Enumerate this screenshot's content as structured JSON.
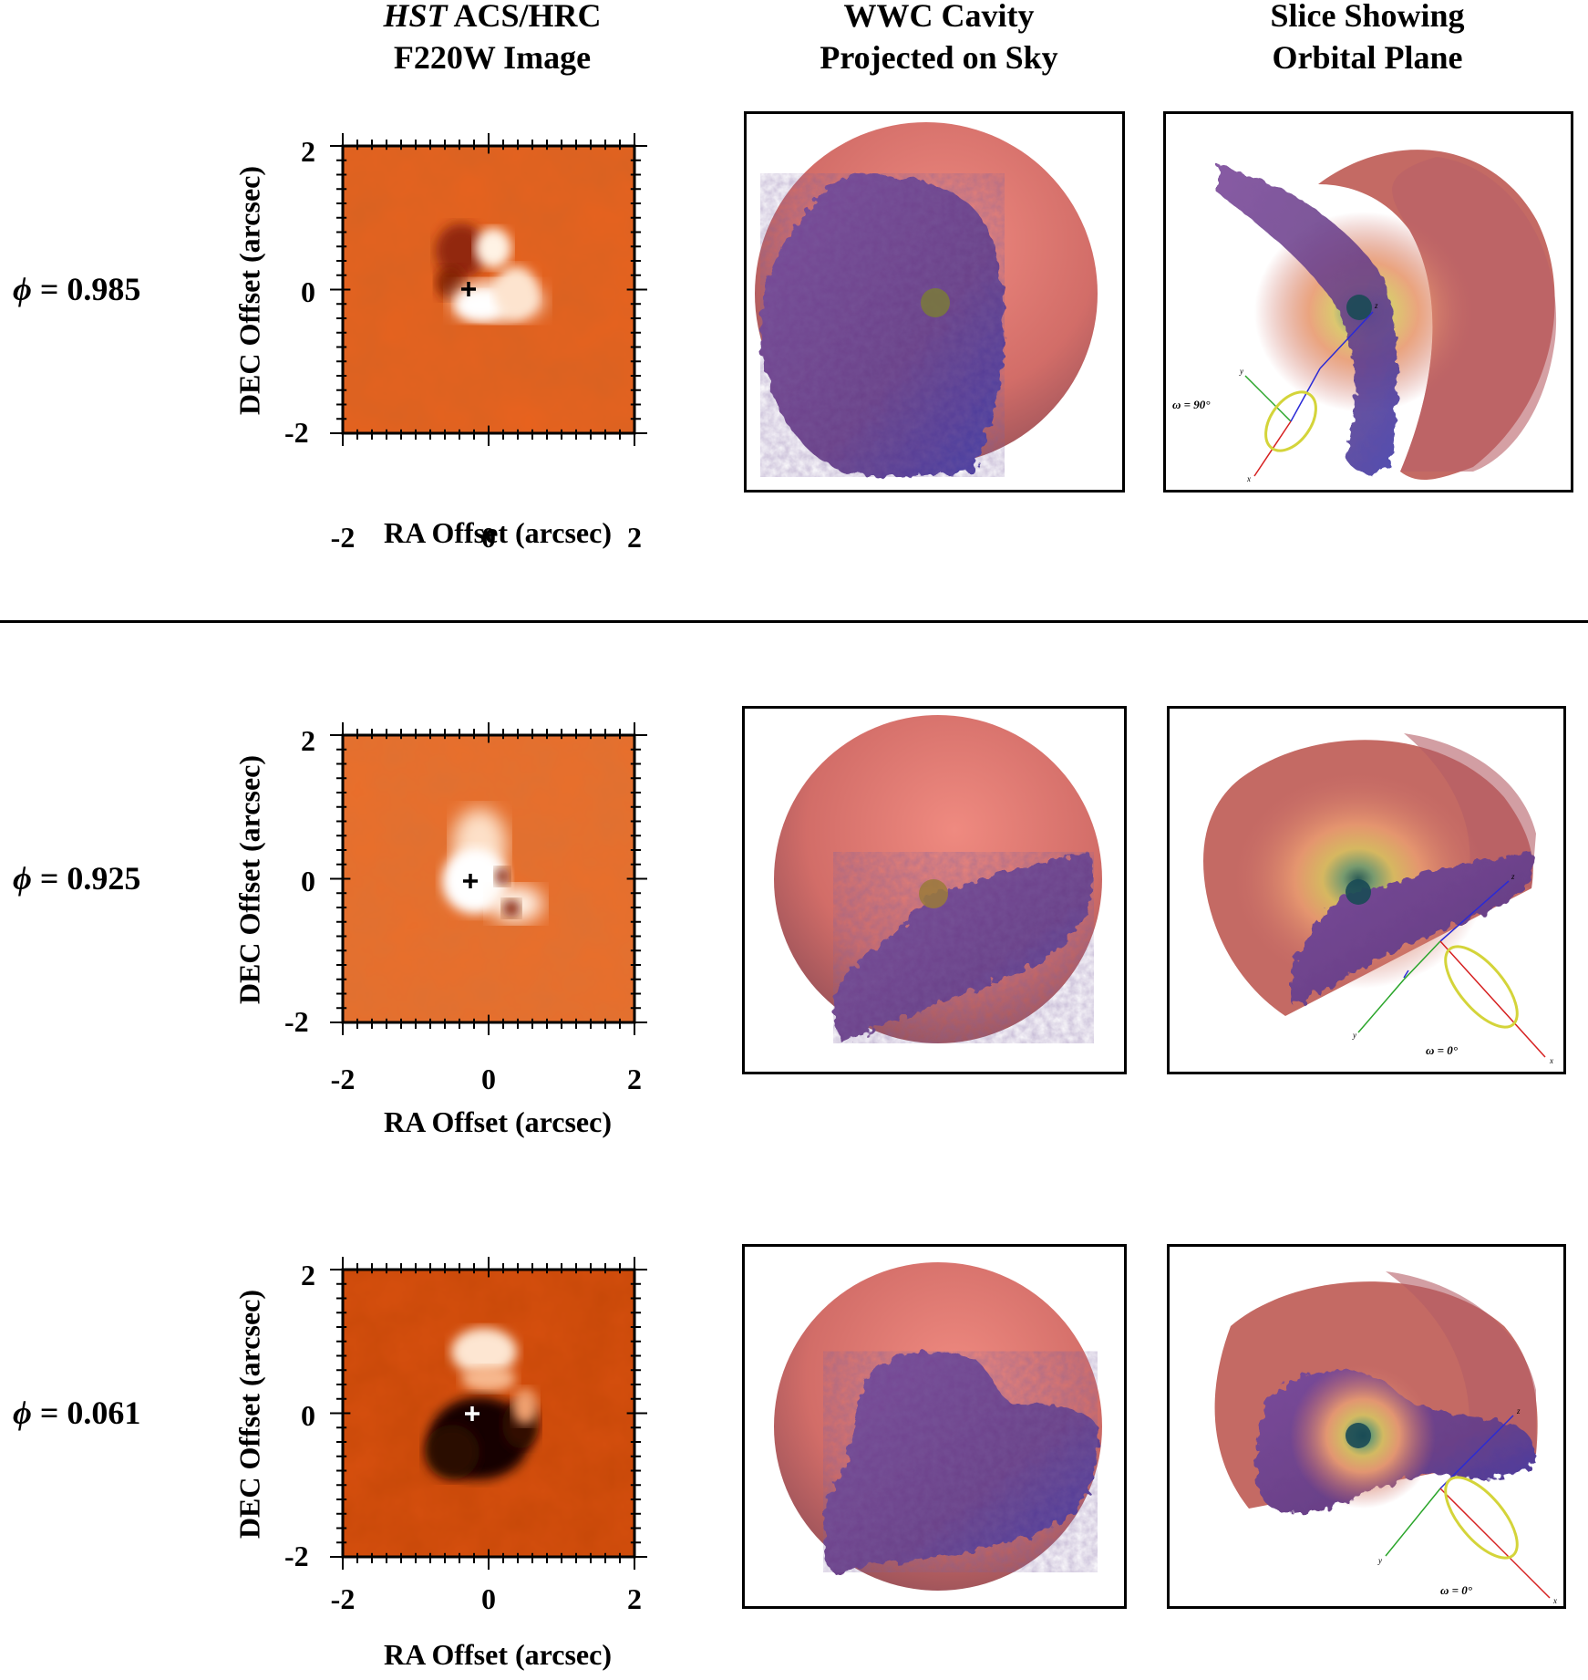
{
  "headers": {
    "col1_italic": "HST",
    "col1_rest": " ACS/HRC",
    "col1_line2": "F220W Image",
    "col2_line1": "WWC Cavity",
    "col2_line2": "Projected on Sky",
    "col3_line1": "Slice Showing",
    "col3_line2": "Orbital Plane"
  },
  "rows": [
    {
      "phi_symbol": "ϕ",
      "phi_text": " = 0.985",
      "omega": "ω = 90°"
    },
    {
      "phi_symbol": "ϕ",
      "phi_text": " = 0.925",
      "omega": "ω = 0°"
    },
    {
      "phi_symbol": "ϕ",
      "phi_text": " = 0.061",
      "omega": "ω = 0°"
    }
  ],
  "axes": {
    "x_title": "RA Offset (arcsec)",
    "y_title": "DEC Offset (arcsec)",
    "x_ticks": [
      "-2",
      "0",
      "2"
    ],
    "y_ticks": [
      "2",
      "0",
      "-2"
    ],
    "x_range": [
      -2,
      2
    ],
    "y_range": [
      -2,
      2
    ]
  },
  "orbit_axes": {
    "x": "x",
    "y": "y",
    "z": "z"
  },
  "colors": {
    "hst_base": "#e8621e",
    "sphere": "#d9726e",
    "cavity": "#6a3f8c",
    "orbit_ring": "#d4d43a",
    "axis_x": "#d62020",
    "axis_y": "#2aa52a",
    "axis_z": "#2a2ad6"
  }
}
